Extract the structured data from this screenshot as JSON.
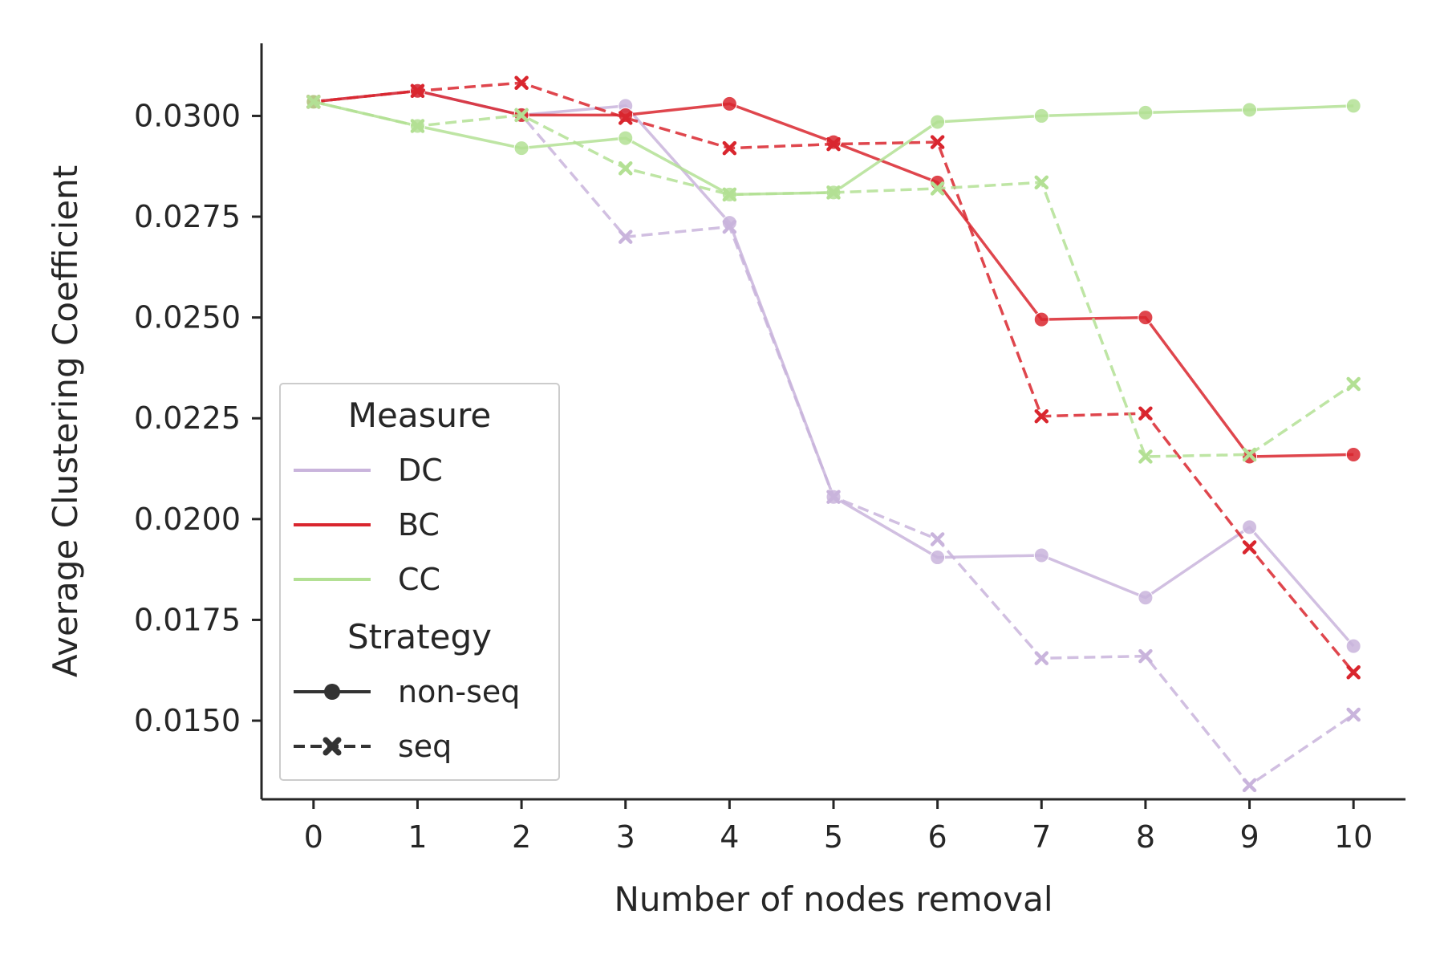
{
  "chart_data": {
    "type": "line",
    "xlabel": "Number of nodes removal",
    "ylabel": "Average Clustering Coefficient",
    "x": [
      0,
      1,
      2,
      3,
      4,
      5,
      6,
      7,
      8,
      9,
      10
    ],
    "xlim": [
      -0.5,
      10.5
    ],
    "ylim": [
      0.01305,
      0.0318
    ],
    "yticks": [
      "0.0150",
      "0.0175",
      "0.0200",
      "0.0225",
      "0.0250",
      "0.0275",
      "0.0300"
    ],
    "grid": false,
    "legend_placement": "lower-left",
    "legend": {
      "hue_title": "Measure",
      "style_title": "Strategy",
      "measures": [
        {
          "name": "DC",
          "color": "#c9b4dc"
        },
        {
          "name": "BC",
          "color": "#d9262e"
        },
        {
          "name": "CC",
          "color": "#b3e094"
        }
      ],
      "strategies": [
        {
          "name": "non-seq",
          "line": "solid",
          "marker": "circle"
        },
        {
          "name": "seq",
          "line": "dashed",
          "marker": "x"
        }
      ]
    },
    "series": [
      {
        "measure": "DC",
        "strategy": "non-seq",
        "values": [
          0.03035,
          0.03062,
          0.03002,
          0.03025,
          0.02735,
          0.02055,
          0.01905,
          0.0191,
          0.01805,
          0.0198,
          0.01685
        ]
      },
      {
        "measure": "DC",
        "strategy": "seq",
        "values": [
          0.03035,
          0.03062,
          0.03002,
          0.027,
          0.02725,
          0.02055,
          0.0195,
          0.01655,
          0.0166,
          0.0134,
          0.01515
        ]
      },
      {
        "measure": "BC",
        "strategy": "non-seq",
        "values": [
          0.03035,
          0.03062,
          0.03002,
          0.03002,
          0.0303,
          0.02935,
          0.02835,
          0.02495,
          0.025,
          0.02155,
          0.0216
        ]
      },
      {
        "measure": "BC",
        "strategy": "seq",
        "values": [
          0.03035,
          0.03062,
          0.03082,
          0.02995,
          0.0292,
          0.0293,
          0.02935,
          0.02255,
          0.02262,
          0.0193,
          0.0162
        ]
      },
      {
        "measure": "CC",
        "strategy": "non-seq",
        "values": [
          0.03035,
          0.02975,
          0.0292,
          0.02945,
          0.02805,
          0.0281,
          0.02985,
          0.03,
          0.03008,
          0.03015,
          0.03025
        ]
      },
      {
        "measure": "CC",
        "strategy": "seq",
        "values": [
          0.03035,
          0.02975,
          0.03002,
          0.0287,
          0.02805,
          0.0281,
          0.0282,
          0.02835,
          0.02155,
          0.0216,
          0.02335
        ]
      }
    ]
  }
}
